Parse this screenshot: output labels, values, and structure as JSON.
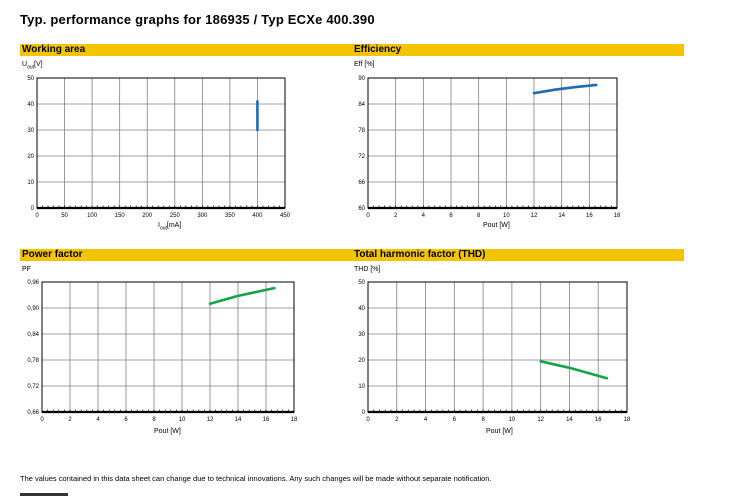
{
  "header": {
    "title": "Typ. performance graphs for 186935 / Typ ECXe 400.390"
  },
  "footnote": "The values contained in this data sheet can change due to technical innovations. Any such changes will be made without separate notification.",
  "colors": {
    "band": "#f5c400",
    "series_blue": "#1f6cb0",
    "series_green": "#16a34a"
  },
  "chart_data": [
    {
      "id": "working-area",
      "type": "line",
      "title": "Working area",
      "ylabel": {
        "main": "U",
        "sub": "out",
        "tail": "[V]"
      },
      "xlabel": {
        "main": "I",
        "sub": "out",
        "tail": "[mA]"
      },
      "xlim": [
        0,
        450
      ],
      "ylim": [
        0,
        50
      ],
      "xticks": [
        0,
        50,
        100,
        150,
        200,
        250,
        300,
        350,
        400,
        450
      ],
      "yticks": [
        0,
        10,
        20,
        30,
        40,
        50
      ],
      "xgrid": 9,
      "ygrid": 5,
      "grid": true,
      "series": [
        {
          "color": "#1f6cb0",
          "points": [
            [
              400,
              30
            ],
            [
              400,
              41
            ]
          ]
        }
      ]
    },
    {
      "id": "efficiency",
      "type": "line",
      "title": "Efficiency",
      "ylabel": "Eff [%]",
      "xlabel": "Pout [W]",
      "xlim": [
        0,
        18
      ],
      "ylim": [
        60,
        90
      ],
      "xticks": [
        0,
        2,
        4,
        6,
        8,
        10,
        12,
        14,
        16,
        18
      ],
      "yticks": [
        60,
        66,
        72,
        78,
        84,
        90
      ],
      "xgrid": 9,
      "ygrid": 5,
      "grid": true,
      "series": [
        {
          "color": "#1f6cb0",
          "points": [
            [
              12,
              86.5
            ],
            [
              13.5,
              87.3
            ],
            [
              15,
              87.9
            ],
            [
              16.5,
              88.4
            ]
          ]
        }
      ]
    },
    {
      "id": "power-factor",
      "type": "line",
      "title": "Power factor",
      "ylabel": "PF",
      "xlabel": "Pout [W]",
      "xlim": [
        0,
        18
      ],
      "ylim": [
        0.66,
        0.96
      ],
      "xticks": [
        0,
        2,
        4,
        6,
        8,
        10,
        12,
        14,
        16,
        18
      ],
      "yticks": [
        "0,66",
        "0,72",
        "0,78",
        "0,84",
        "0,90",
        "0,96"
      ],
      "xgrid": 9,
      "ygrid": 5,
      "grid": true,
      "series": [
        {
          "color": "#16a34a",
          "points": [
            [
              12,
              0.91
            ],
            [
              14,
              0.928
            ],
            [
              16.6,
              0.946
            ]
          ]
        }
      ]
    },
    {
      "id": "thd",
      "type": "line",
      "title": "Total harmonic factor (THD)",
      "ylabel": "THD [%]",
      "xlabel": "Pout [W]",
      "xlim": [
        0,
        18
      ],
      "ylim": [
        0,
        50
      ],
      "xticks": [
        0,
        2,
        4,
        6,
        8,
        10,
        12,
        14,
        16,
        18
      ],
      "yticks": [
        0,
        10,
        20,
        30,
        40,
        50
      ],
      "xgrid": 9,
      "ygrid": 5,
      "grid": true,
      "series": [
        {
          "color": "#16a34a",
          "points": [
            [
              12,
              19.5
            ],
            [
              14,
              17
            ],
            [
              16.6,
              13
            ]
          ]
        }
      ]
    }
  ]
}
